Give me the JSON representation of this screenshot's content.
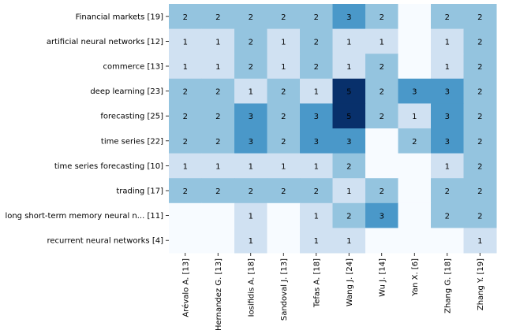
{
  "chart_data": {
    "type": "heatmap",
    "rows": [
      "Financial markets [19]",
      "artificial neural networks [12]",
      "commerce [13]",
      "deep learning [23]",
      "forecasting [25]",
      "time series [22]",
      "time series forecasting [10]",
      "trading [17]",
      "long short-term memory neural n... [11]",
      "recurrent neural networks [4]"
    ],
    "columns": [
      "Arévalo A. [13]",
      "Hernandez G. [13]",
      "Iosifidis A. [18]",
      "Sandoval J. [13]",
      "Tefas A. [18]",
      "Wang J. [24]",
      "Wu J. [14]",
      "Yan X. [6]",
      "Zhang G. [18]",
      "Zhang Y. [19]"
    ],
    "values": [
      [
        2,
        2,
        2,
        2,
        2,
        3,
        2,
        0,
        2,
        2
      ],
      [
        1,
        1,
        2,
        1,
        2,
        1,
        1,
        0,
        1,
        2
      ],
      [
        1,
        1,
        2,
        1,
        2,
        1,
        2,
        0,
        1,
        2
      ],
      [
        2,
        2,
        1,
        2,
        1,
        5,
        2,
        3,
        3,
        2
      ],
      [
        2,
        2,
        3,
        2,
        3,
        5,
        2,
        1,
        3,
        2
      ],
      [
        2,
        2,
        3,
        2,
        3,
        3,
        0,
        2,
        3,
        2
      ],
      [
        1,
        1,
        1,
        1,
        1,
        2,
        0,
        0,
        1,
        2
      ],
      [
        2,
        2,
        2,
        2,
        2,
        1,
        2,
        0,
        2,
        2
      ],
      [
        0,
        0,
        1,
        0,
        1,
        2,
        3,
        0,
        2,
        2
      ],
      [
        0,
        0,
        1,
        0,
        1,
        1,
        0,
        0,
        0,
        1
      ]
    ],
    "color_range": [
      0,
      5
    ],
    "colormap": "Blues",
    "show_zero_labels": false,
    "colors": {
      "0": "#f7fbff",
      "1": "#d0e1f2",
      "2": "#94c4df",
      "3": "#4a98c9",
      "4": "#1764ab",
      "5": "#08306b"
    },
    "label_colors": {
      "dark": "#000000",
      "light": "#ffffff"
    }
  }
}
